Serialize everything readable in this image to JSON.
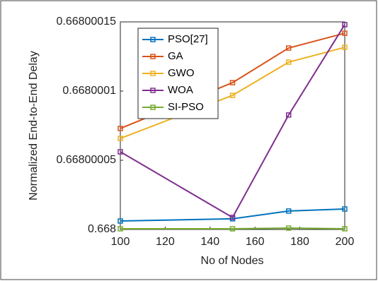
{
  "chart_data": {
    "type": "line",
    "xlabel": "No of Nodes",
    "ylabel": "Normalized End-to-End Delay",
    "x": [
      100,
      150,
      175,
      200
    ],
    "xlim": [
      100,
      200
    ],
    "xticks": [
      100,
      120,
      140,
      160,
      180,
      200
    ],
    "ylim": [
      0.668,
      0.66800015
    ],
    "yticks": [
      0.668,
      0.66800005,
      0.6680001,
      0.66800015
    ],
    "legend": "upper-left",
    "grid": false,
    "marker": "square",
    "series": [
      {
        "name": "PSO[27]",
        "color": "#0072BD",
        "values": [
          0.6680000061,
          0.6680000077,
          0.6680000133,
          0.6680000148
        ]
      },
      {
        "name": "GA",
        "color": "#D95319",
        "values": [
          0.668000073,
          0.6680001061,
          0.6680001311,
          0.6680001418
        ]
      },
      {
        "name": "GWO",
        "color": "#EDB120",
        "values": [
          0.6680000658,
          0.6680000969,
          0.6680001209,
          0.6680001316
        ]
      },
      {
        "name": "WOA",
        "color": "#7E2F8E",
        "values": [
          0.6680000561,
          0.6680000087,
          0.6680000827,
          0.668000148
        ]
      },
      {
        "name": "SI-PSO",
        "color": "#77AC30",
        "values": [
          0.6680000005,
          0.6680000005,
          0.668000001,
          0.6680000005
        ]
      }
    ]
  }
}
